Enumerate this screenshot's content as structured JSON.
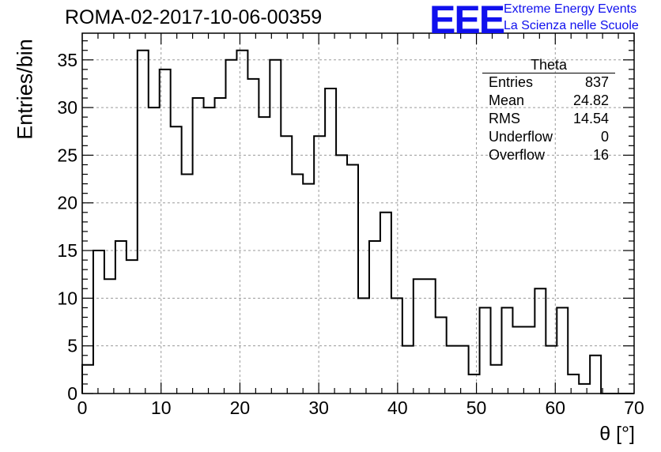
{
  "header": {
    "run_title": "ROMA-02-2017-10-06-00359",
    "logo_text": "EEE",
    "logo_line1": "Extreme Energy Events",
    "logo_line2": "La Scienza nelle Scuole",
    "logo_color": "#1010ee"
  },
  "stats_box": {
    "title": "Theta",
    "rows": [
      {
        "label": "Entries",
        "value": "837"
      },
      {
        "label": "Mean",
        "value": "24.82"
      },
      {
        "label": "RMS",
        "value": "14.54"
      },
      {
        "label": "Underflow",
        "value": "0"
      },
      {
        "label": "Overflow",
        "value": "16"
      }
    ]
  },
  "chart_data": {
    "type": "bar",
    "style": "step-histogram",
    "xlabel": "θ [°]",
    "ylabel": "Entries/bin",
    "xlim": [
      0,
      70
    ],
    "ylim": [
      0,
      37.8
    ],
    "grid": true,
    "bin_width": 1.4,
    "bin_edges_start": 0,
    "values": [
      3,
      15,
      12,
      16,
      14,
      36,
      30,
      34,
      28,
      23,
      31,
      30,
      31,
      35,
      36,
      33,
      29,
      35,
      27,
      23,
      22,
      27,
      32,
      25,
      24,
      10,
      16,
      19,
      10,
      5,
      12,
      12,
      8,
      5,
      5,
      2,
      9,
      3,
      9,
      7,
      7,
      11,
      5,
      9,
      2,
      1,
      4,
      0,
      0,
      0
    ],
    "x_ticks": [
      "0",
      "10",
      "20",
      "30",
      "40",
      "50",
      "60",
      "70"
    ],
    "y_ticks": [
      "0",
      "5",
      "10",
      "15",
      "20",
      "25",
      "30",
      "35"
    ]
  }
}
